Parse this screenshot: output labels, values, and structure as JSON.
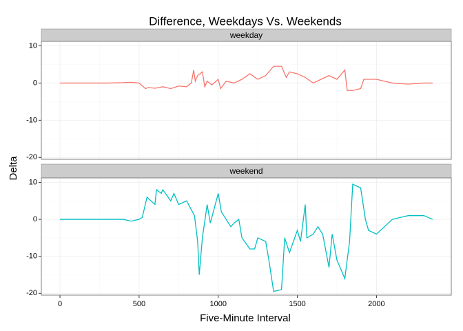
{
  "chart_data": [
    {
      "type": "line",
      "title": "Difference, Weekdays Vs. Weekends",
      "x_label": "Five-Minute Interval",
      "y_label": "Delta",
      "facet": "weekday",
      "x": [
        0,
        100,
        200,
        300,
        400,
        450,
        500,
        540,
        560,
        600,
        650,
        700,
        750,
        800,
        830,
        845,
        855,
        870,
        900,
        915,
        930,
        960,
        1000,
        1015,
        1050,
        1100,
        1150,
        1200,
        1250,
        1300,
        1350,
        1400,
        1430,
        1450,
        1500,
        1550,
        1600,
        1650,
        1700,
        1750,
        1800,
        1815,
        1850,
        1900,
        1920,
        1950,
        2000,
        2050,
        2100,
        2200,
        2300,
        2355
      ],
      "values": [
        0,
        0,
        0,
        0,
        0.1,
        0.2,
        0,
        -1.5,
        -1.2,
        -1.4,
        -1.0,
        -1.5,
        -0.8,
        -1.0,
        0,
        3.5,
        0.5,
        2.0,
        3.0,
        -1.0,
        0.5,
        -0.5,
        1.0,
        -1.5,
        0.5,
        0,
        1.0,
        2.5,
        1.0,
        2.0,
        4.5,
        4.5,
        1.5,
        3.0,
        2.5,
        1.5,
        0,
        1.0,
        2.0,
        1.0,
        3.5,
        -2.0,
        -2.0,
        -1.5,
        1.0,
        1.0,
        1.0,
        0.5,
        0,
        -0.3,
        0,
        0
      ],
      "color": "#F8766D",
      "ylim": [
        -20.5,
        11.2
      ],
      "yticks": [
        -20,
        -10,
        0,
        10
      ],
      "xlim": [
        -117.75,
        2472.75
      ],
      "grid": true
    },
    {
      "type": "line",
      "facet": "weekend",
      "x": [
        0,
        100,
        200,
        300,
        400,
        450,
        500,
        520,
        550,
        600,
        610,
        640,
        650,
        700,
        720,
        750,
        800,
        850,
        870,
        880,
        900,
        930,
        950,
        1000,
        1020,
        1050,
        1080,
        1100,
        1130,
        1150,
        1200,
        1230,
        1250,
        1300,
        1320,
        1350,
        1400,
        1420,
        1450,
        1500,
        1520,
        1550,
        1560,
        1600,
        1630,
        1660,
        1700,
        1720,
        1750,
        1800,
        1830,
        1850,
        1900,
        1930,
        1950,
        2000,
        2050,
        2100,
        2150,
        2200,
        2300,
        2355
      ],
      "values": [
        0,
        0,
        0,
        0,
        0,
        -0.5,
        0,
        0.5,
        6,
        4,
        8,
        7,
        8,
        5,
        7,
        4,
        5,
        1,
        -6,
        -15,
        -5,
        4,
        -1,
        7,
        2,
        0,
        -2,
        -1,
        0,
        -5,
        -8,
        -8,
        -5,
        -6,
        -11,
        -19.5,
        -19,
        -5,
        -9,
        -3,
        -6,
        4,
        -5,
        -4,
        -2,
        -4,
        -13,
        -4,
        -11,
        -16,
        -6,
        9.5,
        8.5,
        0,
        -3,
        -4,
        -2,
        0,
        0.5,
        1,
        1,
        0
      ],
      "color": "#00BFC4",
      "ylim": [
        -20.5,
        11.2
      ],
      "yticks": [
        -20,
        -10,
        0,
        10
      ],
      "xlim": [
        -117.75,
        2472.75
      ],
      "xticks": [
        0,
        500,
        1000,
        1500,
        2000
      ],
      "grid": true
    }
  ]
}
